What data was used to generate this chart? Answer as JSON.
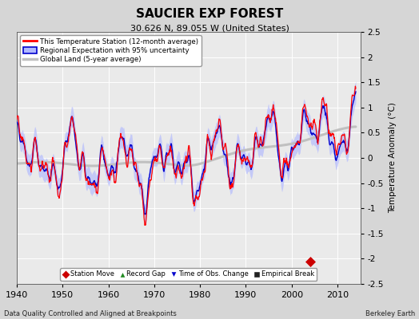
{
  "title": "SAUCIER EXP FOREST",
  "subtitle": "30.626 N, 89.055 W (United States)",
  "ylabel": "Temperature Anomaly (°C)",
  "xlabel_left": "Data Quality Controlled and Aligned at Breakpoints",
  "xlabel_right": "Berkeley Earth",
  "xlim": [
    1940,
    2015
  ],
  "ylim": [
    -2.5,
    2.5
  ],
  "yticks": [
    -2.5,
    -2,
    -1.5,
    -1,
    -0.5,
    0,
    0.5,
    1,
    1.5,
    2,
    2.5
  ],
  "xticks": [
    1940,
    1950,
    1960,
    1970,
    1980,
    1990,
    2000,
    2010
  ],
  "bg_color": "#d6d6d6",
  "plot_bg_color": "#eaeaea",
  "grid_color": "#ffffff",
  "station_color": "#ff0000",
  "regional_color": "#0000cc",
  "regional_fill_color": "#b0b8ff",
  "global_color": "#c0c0c0",
  "legend_items": [
    {
      "label": "This Temperature Station (12-month average)",
      "color": "#ff0000",
      "lw": 1.5
    },
    {
      "label": "Regional Expectation with 95% uncertainty",
      "color": "#0000cc",
      "fill": "#b0b8ff",
      "lw": 1.5
    },
    {
      "label": "Global Land (5-year average)",
      "color": "#c0c0c0",
      "lw": 2.5
    }
  ],
  "marker_legend": [
    {
      "label": "Station Move",
      "color": "#cc0000",
      "marker": "D"
    },
    {
      "label": "Record Gap",
      "color": "#228B22",
      "marker": "^"
    },
    {
      "label": "Time of Obs. Change",
      "color": "#0000cc",
      "marker": "v"
    },
    {
      "label": "Empirical Break",
      "color": "#222222",
      "marker": "s"
    }
  ],
  "station_move_x": 2004.0,
  "station_move_y": -2.05
}
